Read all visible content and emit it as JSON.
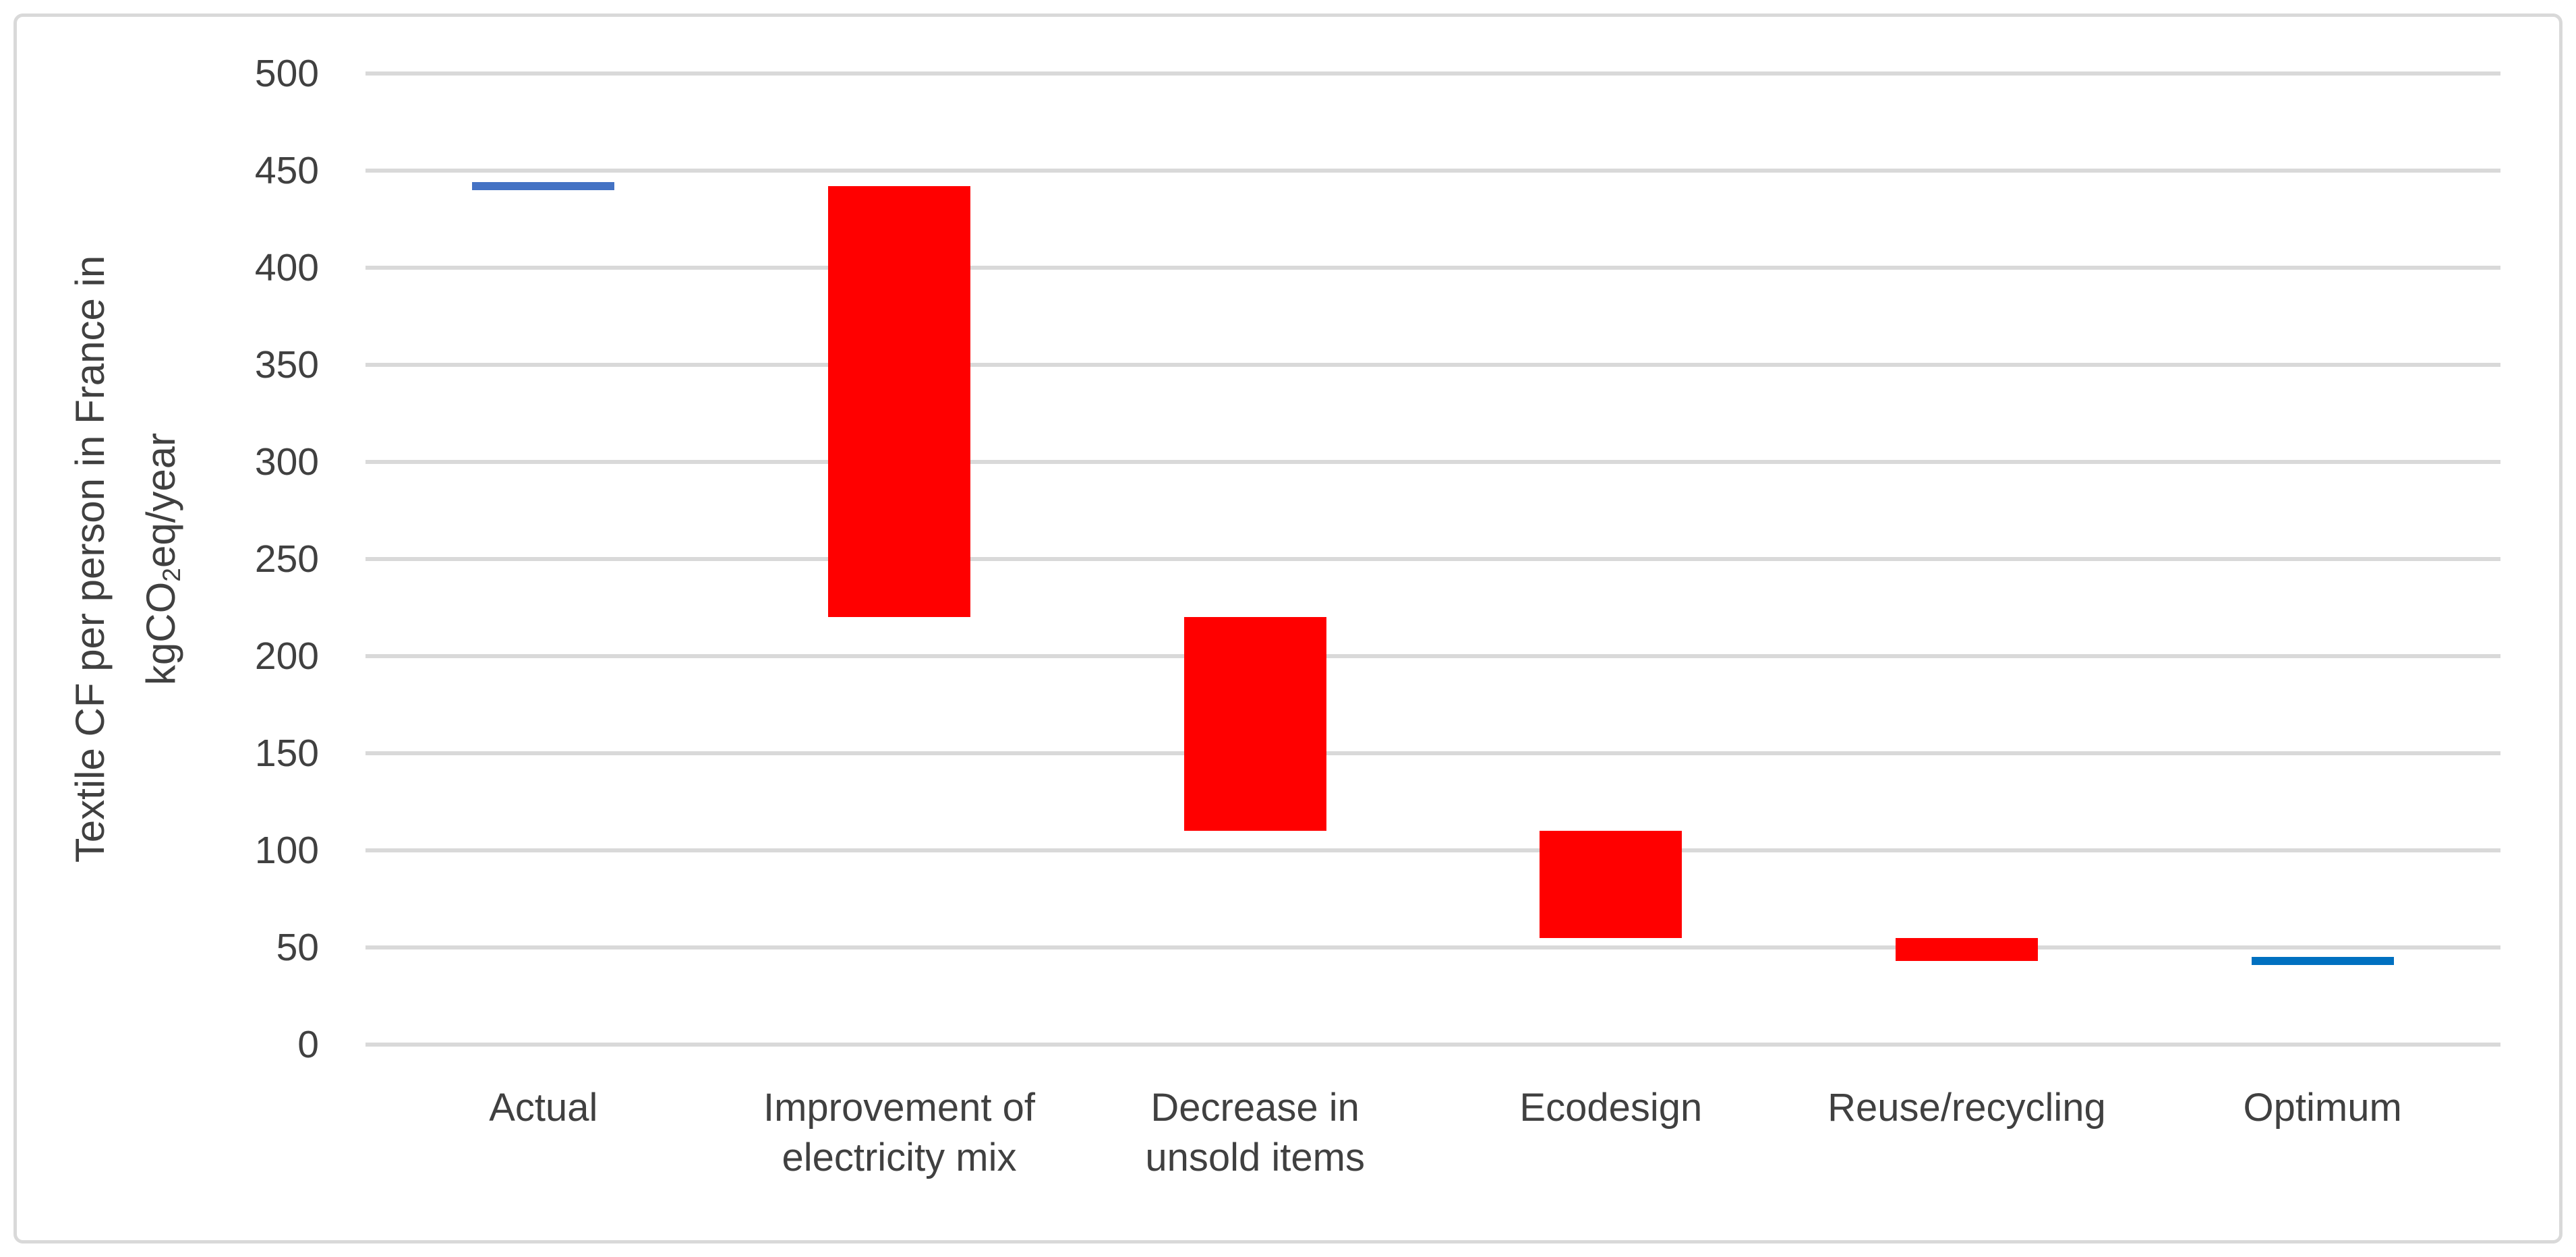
{
  "chart_data": {
    "type": "bar",
    "subtype": "waterfall",
    "title": "",
    "xlabel": "",
    "ylabel_line1": "Textile CF per person in France in",
    "ylabel_line2_pre": "kgCO",
    "ylabel_line2_sub": "2",
    "ylabel_line2_post": "eq/year",
    "ylim": [
      0,
      500
    ],
    "ytick_step": 50,
    "yticks": [
      0,
      50,
      100,
      150,
      200,
      250,
      300,
      350,
      400,
      450,
      500
    ],
    "grid": "horizontal",
    "legend": "none",
    "categories": [
      "Actual",
      "Improvement of electricity mix",
      "Decrease in unsold items",
      "Ecodesign",
      "Reuse/recycling",
      "Optimum"
    ],
    "columns": [
      {
        "label": "Actual",
        "lines": [
          "Actual"
        ],
        "kind": "total",
        "value": 442,
        "color": "#4472C4"
      },
      {
        "label": "Improvement of electricity mix",
        "lines": [
          "Improvement of",
          "electricity mix"
        ],
        "kind": "decrease",
        "from": 442,
        "to": 220,
        "delta": -222,
        "color": "#FF0000"
      },
      {
        "label": "Decrease in unsold items",
        "lines": [
          "Decrease in",
          "unsold items"
        ],
        "kind": "decrease",
        "from": 220,
        "to": 110,
        "delta": -110,
        "color": "#FF0000"
      },
      {
        "label": "Ecodesign",
        "lines": [
          "Ecodesign"
        ],
        "kind": "decrease",
        "from": 110,
        "to": 55,
        "delta": -55,
        "color": "#FF0000"
      },
      {
        "label": "Reuse/recycling",
        "lines": [
          "Reuse/recycling"
        ],
        "kind": "decrease",
        "from": 55,
        "to": 43,
        "delta": -12,
        "color": "#FF0000"
      },
      {
        "label": "Optimum",
        "lines": [
          "Optimum"
        ],
        "kind": "total",
        "value": 43,
        "color": "#0070C0"
      }
    ],
    "colors": {
      "gridline": "#D9D9D9",
      "frame": "#D9D9D9",
      "text": "#404040",
      "background": "#FFFFFF",
      "actual_blue": "#4472C4",
      "optimum_blue": "#0070C0",
      "decrease_red": "#FF0000"
    }
  }
}
